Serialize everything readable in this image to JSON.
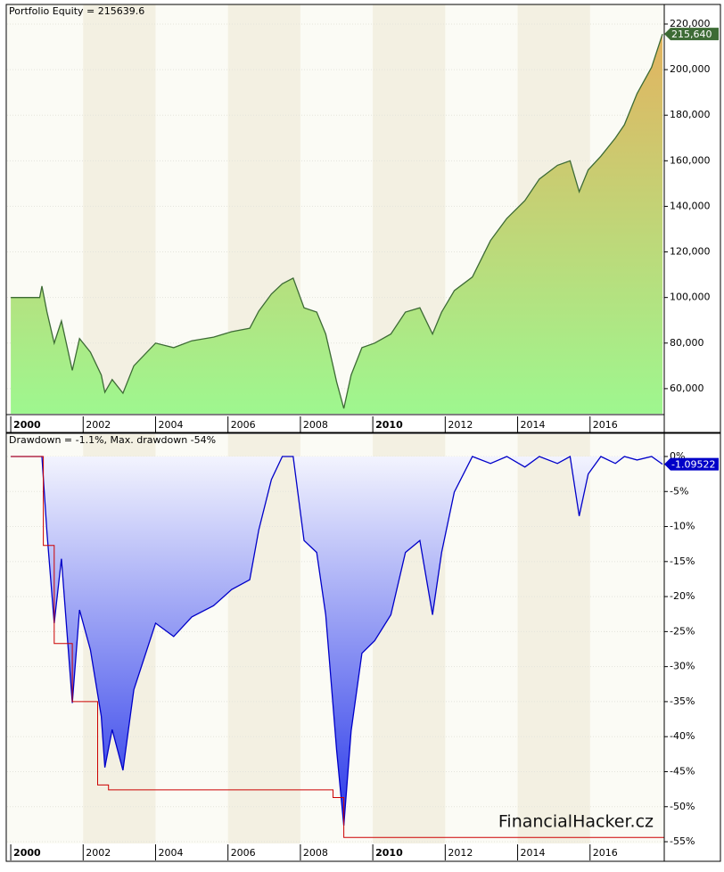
{
  "chart_data": [
    {
      "type": "area",
      "title": "Portfolio Equity = 215639.6",
      "x": [
        2000.0,
        2000.8,
        2000.86,
        2001.0,
        2001.2,
        2001.4,
        2001.7,
        2001.9,
        2002.2,
        2002.5,
        2002.6,
        2002.8,
        2003.1,
        2003.4,
        2004.0,
        2004.5,
        2005.0,
        2005.6,
        2006.1,
        2006.6,
        2006.85,
        2007.2,
        2007.5,
        2007.8,
        2008.1,
        2008.45,
        2008.7,
        2008.9,
        2009.0,
        2009.2,
        2009.4,
        2009.7,
        2010.05,
        2010.5,
        2010.9,
        2011.3,
        2011.65,
        2011.9,
        2012.25,
        2012.75,
        2013.25,
        2013.7,
        2014.2,
        2014.6,
        2015.1,
        2015.45,
        2015.7,
        2015.95,
        2016.3,
        2016.7,
        2016.95,
        2017.3,
        2017.7,
        2018.0
      ],
      "series": [
        {
          "color": "#3d6b35",
          "fill_colors": [
            "#e8ae5c",
            "#9ef78f"
          ],
          "values": [
            100000,
            100000,
            105000,
            93600,
            80000,
            89700,
            68000,
            82000,
            76000,
            66000,
            58400,
            64000,
            58000,
            70000,
            80000,
            78000,
            81000,
            82600,
            85000,
            86500,
            94000,
            101500,
            106000,
            108500,
            95500,
            93600,
            84000,
            70000,
            63000,
            51300,
            66000,
            78000,
            80000,
            84000,
            93600,
            95500,
            84000,
            93600,
            103000,
            109000,
            125000,
            134700,
            142500,
            152000,
            158000,
            160000,
            146400,
            156000,
            162000,
            170000,
            175800,
            189500,
            201000,
            215600
          ]
        }
      ],
      "last_tag": {
        "value": 215640,
        "label": "215,640"
      },
      "xlim": [
        1999.9,
        2018.05
      ],
      "xticks": [
        2000,
        2002,
        2004,
        2006,
        2008,
        2010,
        2012,
        2014,
        2016
      ],
      "bold_ticks": [
        2000,
        2010
      ],
      "ylim": [
        49000,
        228600
      ],
      "yticks": [
        {
          "value": 60000,
          "label": "60,000"
        },
        {
          "value": 80000,
          "label": "80,000"
        },
        {
          "value": 100000,
          "label": "100,000"
        },
        {
          "value": 120000,
          "label": "120,000"
        },
        {
          "value": 140000,
          "label": "140,000"
        },
        {
          "value": 160000,
          "label": "160,000"
        },
        {
          "value": 180000,
          "label": "180,000"
        },
        {
          "value": 200000,
          "label": "200,000"
        },
        {
          "value": 220000,
          "label": "220,000"
        }
      ]
    },
    {
      "type": "area",
      "title": "Drawdown = -1.1%, Max. drawdown -54%",
      "x": [
        2000.0,
        2000.8,
        2000.86,
        2001.0,
        2001.2,
        2001.4,
        2001.7,
        2001.9,
        2002.2,
        2002.5,
        2002.6,
        2002.8,
        2003.1,
        2003.4,
        2004.0,
        2004.5,
        2005.0,
        2005.6,
        2006.1,
        2006.6,
        2006.85,
        2007.2,
        2007.5,
        2007.8,
        2008.1,
        2008.45,
        2008.7,
        2008.9,
        2009.0,
        2009.2,
        2009.4,
        2009.7,
        2010.05,
        2010.5,
        2010.9,
        2011.3,
        2011.65,
        2011.9,
        2012.25,
        2012.75,
        2013.25,
        2013.7,
        2014.2,
        2014.6,
        2015.1,
        2015.45,
        2015.7,
        2015.95,
        2016.3,
        2016.7,
        2016.95,
        2017.3,
        2017.7,
        2018.0
      ],
      "series": [
        {
          "color": "#0000c8",
          "fill_colors": [
            "#ffffff",
            "#1e2ee8"
          ],
          "values": [
            0,
            0,
            0,
            -10.9,
            -23.8,
            -14.6,
            -35.2,
            -21.9,
            -27.6,
            -37.1,
            -44.4,
            -39,
            -44.8,
            -33.3,
            -23.8,
            -25.7,
            -22.9,
            -21.3,
            -19,
            -17.6,
            -10.5,
            -3.3,
            0,
            0,
            -12,
            -13.7,
            -22.6,
            -35.5,
            -41.9,
            -52.7,
            -39.2,
            -28.1,
            -26.3,
            -22.6,
            -13.7,
            -12,
            -22.6,
            -13.7,
            -5.1,
            0,
            -1,
            0,
            -1.5,
            0,
            -1,
            0,
            -8.5,
            -2.5,
            0,
            -1,
            0,
            -0.5,
            0,
            -1.1
          ]
        }
      ],
      "max_drawdown": {
        "color": "#cc0000",
        "x": [
          2000.0,
          2000.9,
          2001.2,
          2001.7,
          2002.4,
          2002.7,
          2008.9,
          2009.2
        ],
        "values": [
          0,
          -12.7,
          -26.7,
          -35,
          -46.9,
          -47.6,
          -48.7,
          -54.4
        ]
      },
      "last_tag": -1.09522,
      "watermark": "FinancialHacker.cz",
      "xlim": [
        1999.9,
        2018.05
      ],
      "xticks": [
        2000,
        2002,
        2004,
        2006,
        2008,
        2010,
        2012,
        2014,
        2016
      ],
      "bold_ticks": [
        2000,
        2010
      ],
      "ylim": [
        -55.25,
        3.18
      ],
      "yticks": [
        {
          "value": 0,
          "label": "0%"
        },
        {
          "value": -5,
          "label": "-5%"
        },
        {
          "value": -10,
          "label": "-10%"
        },
        {
          "value": -15,
          "label": "-15%"
        },
        {
          "value": -20,
          "label": "-20%"
        },
        {
          "value": -25,
          "label": "-25%"
        },
        {
          "value": -30,
          "label": "-30%"
        },
        {
          "value": -35,
          "label": "-35%"
        },
        {
          "value": -40,
          "label": "-40%"
        },
        {
          "value": -45,
          "label": "-45%"
        },
        {
          "value": -50,
          "label": "-50%"
        },
        {
          "value": -55,
          "label": "-55%"
        }
      ]
    }
  ]
}
